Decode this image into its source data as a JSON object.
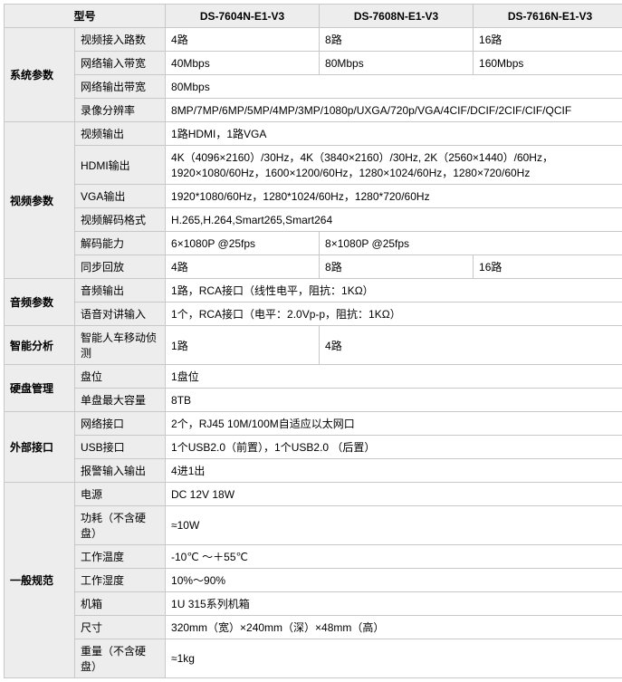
{
  "header": {
    "model_label": "型号",
    "m1": "DS-7604N-E1-V3",
    "m2": "DS-7608N-E1-V3",
    "m3": "DS-7616N-E1-V3"
  },
  "colors": {
    "header_bg": "#ededed",
    "border": "#c8c8c8",
    "value_bg": "#ffffff",
    "text": "#000000"
  },
  "sys": {
    "cat": "系统参数",
    "video_in_label": "视频接入路数",
    "video_in_1": "4路",
    "video_in_2": "8路",
    "video_in_3": "16路",
    "net_in_label": "网络输入带宽",
    "net_in_1": "40Mbps",
    "net_in_2": "80Mbps",
    "net_in_3": "160Mbps",
    "net_out_label": "网络输出带宽",
    "net_out": "80Mbps",
    "rec_res_label": "录像分辨率",
    "rec_res": "8MP/7MP/6MP/5MP/4MP/3MP/1080p/UXGA/720p/VGA/4CIF/DCIF/2CIF/CIF/QCIF"
  },
  "video": {
    "cat": "视频参数",
    "out_label": "视频输出",
    "out": "1路HDMI，1路VGA",
    "hdmi_label": "HDMI输出",
    "hdmi": "4K（4096×2160）/30Hz，4K（3840×2160）/30Hz, 2K（2560×1440）/60Hz，1920×1080/60Hz，1600×1200/60Hz，1280×1024/60Hz，1280×720/60Hz",
    "vga_label": "VGA输出",
    "vga": "1920*1080/60Hz，1280*1024/60Hz，1280*720/60Hz",
    "dec_fmt_label": "视频解码格式",
    "dec_fmt": "H.265,H.264,Smart265,Smart264",
    "dec_cap_label": "解码能力",
    "dec_cap_1": "6×1080P @25fps",
    "dec_cap_2": "8×1080P @25fps",
    "sync_label": "同步回放",
    "sync_1": "4路",
    "sync_2": "8路",
    "sync_3": "16路"
  },
  "audio": {
    "cat": "音频参数",
    "out_label": "音频输出",
    "out": "1路，RCA接口（线性电平，阻抗：1KΩ）",
    "talk_label": "语音对讲输入",
    "talk": "1个，RCA接口（电平：2.0Vp-p，阻抗：1KΩ）"
  },
  "smart": {
    "cat": "智能分析",
    "motion_label": "智能人车移动侦测",
    "motion_1": "1路",
    "motion_2": "4路"
  },
  "hdd": {
    "cat": "硬盘管理",
    "bay_label": "盘位",
    "bay": "1盘位",
    "max_label": "单盘最大容量",
    "max": "8TB"
  },
  "ext": {
    "cat": "外部接口",
    "net_label": "网络接口",
    "net": "2个，RJ45 10M/100M自适应以太网口",
    "usb_label": "USB接口",
    "usb": "1个USB2.0（前置），1个USB2.0 （后置）",
    "alarm_label": "报警输入输出",
    "alarm": "4进1出"
  },
  "gen": {
    "cat": "一般规范",
    "power_label": "电源",
    "power": "DC 12V 18W",
    "watt_label": "功耗（不含硬盘）",
    "watt": "≈10W",
    "temp_label": "工作温度",
    "temp": "-10℃ ～＋55℃",
    "hum_label": "工作湿度",
    "hum": "10%～90%",
    "case_label": "机箱",
    "case": "1U 315系列机箱",
    "size_label": "尺寸",
    "size": "320mm（宽）×240mm（深）×48mm（高）",
    "weight_label": "重量（不含硬盘）",
    "weight": "≈1kg"
  }
}
